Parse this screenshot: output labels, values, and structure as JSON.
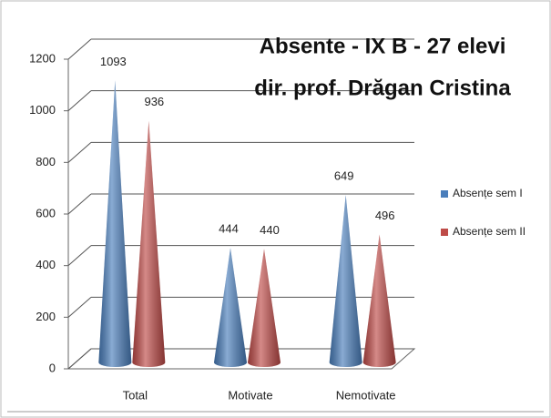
{
  "chart_data": {
    "type": "cone",
    "title": "Absente - IX B - 27 elevi",
    "subtitle": "dir. prof. Drăgan Cristina",
    "categories": [
      "Total",
      "Motivate",
      "Nemotivate"
    ],
    "series": [
      {
        "name": "Absențe sem I",
        "color": "#4a7ebb",
        "values": [
          1093,
          444,
          649
        ]
      },
      {
        "name": "Absențe sem II",
        "color": "#be4b48",
        "values": [
          936,
          440,
          496
        ]
      }
    ],
    "ylim": [
      0,
      1200
    ],
    "yticks": [
      0,
      200,
      400,
      600,
      800,
      1000,
      1200
    ],
    "grid": true,
    "legend": "right"
  }
}
